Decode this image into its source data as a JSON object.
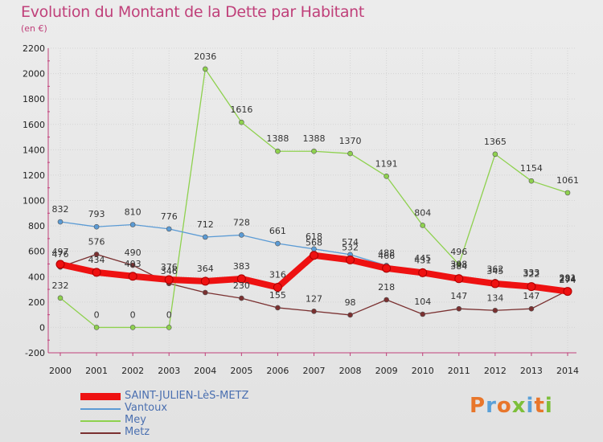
{
  "header": {
    "title": "Evolution du Montant de la Dette par Habitant",
    "subtitle": "(en €)"
  },
  "logo": {
    "text": "Proxiti",
    "colors": [
      "#e8762b",
      "#5aa0d8",
      "#e8762b",
      "#7dbf3a",
      "#5aa0d8",
      "#e8762b",
      "#7dbf3a"
    ]
  },
  "chart_data": {
    "type": "line",
    "title": "Evolution du Montant de la Dette par Habitant",
    "subtitle": "(en €)",
    "xlabel": "",
    "ylabel": "",
    "x": [
      "2000",
      "2001",
      "2002",
      "2003",
      "2004",
      "2005",
      "2006",
      "2007",
      "2008",
      "2009",
      "2010",
      "2011",
      "2012",
      "2013",
      "2014"
    ],
    "ylim": [
      -200,
      2200
    ],
    "yticks": [
      -200,
      0,
      200,
      400,
      600,
      800,
      1000,
      1200,
      1400,
      1600,
      1800,
      2000,
      2200
    ],
    "grid": true,
    "legend_position": "bottom-left",
    "series": [
      {
        "name": "SAINT-JULIEN-LèS-METZ",
        "color": "#ee1111",
        "values": [
          497,
          434,
          403,
          376,
          364,
          383,
          316,
          568,
          532,
          466,
          431,
          384,
          345,
          322,
          284
        ],
        "labels": [
          "497",
          "434",
          "403",
          "376",
          "364",
          "383",
          "316",
          "568",
          "532",
          "466",
          "431",
          "384",
          "345",
          "322",
          "284"
        ]
      },
      {
        "name": "Vantoux",
        "color": "#5b9bd5",
        "values": [
          832,
          793,
          810,
          776,
          712,
          728,
          661,
          618,
          574,
          488,
          445,
          398,
          362,
          333,
          274
        ],
        "labels": [
          "832",
          "793",
          "810",
          "776",
          "712",
          "728",
          "661",
          "618",
          "574",
          "488",
          "445",
          "398",
          "362",
          "333",
          "274"
        ]
      },
      {
        "name": "Mey",
        "color": "#8ed14e",
        "values": [
          232,
          0,
          0,
          0,
          2036,
          1616,
          1388,
          1388,
          1370,
          1191,
          804,
          496,
          1365,
          1154,
          1061
        ],
        "labels": [
          "232",
          "0",
          "0",
          "0",
          "2036",
          "1616",
          "1388",
          "1388",
          "1370",
          "1191",
          "804",
          "496",
          "1365",
          "1154",
          "1061"
        ]
      },
      {
        "name": "Metz",
        "color": "#7a3030",
        "values": [
          476,
          576,
          490,
          346,
          275,
          230,
          155,
          127,
          98,
          218,
          104,
          147,
          134,
          147,
          291
        ],
        "labels": [
          "476",
          "576",
          "490",
          "346",
          "",
          "230",
          "155",
          "127",
          "98",
          "218",
          "104",
          "147",
          "134",
          "147",
          "291"
        ]
      }
    ]
  }
}
